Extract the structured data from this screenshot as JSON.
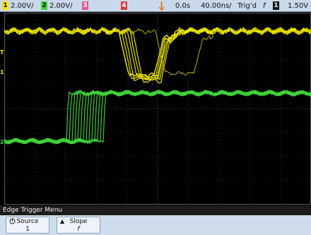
{
  "status_bar": {
    "ch1": {
      "number": "1",
      "scale": "2.00V/",
      "color": "#f5e400"
    },
    "ch2": {
      "number": "2",
      "scale": "2.00V/",
      "color": "#3fd63a"
    },
    "ch3": {
      "number": "3",
      "color": "#e05a8a"
    },
    "ch4": {
      "number": "4",
      "color": "#e03a3a"
    },
    "trigger_marker_icon": "trigger-position-arrow",
    "delay": "0.0s",
    "timebase": "40.00ns/",
    "trigger_status": "Trig'd",
    "slope_symbol": "f",
    "trigger_source": "1",
    "trigger_level": "1.50V"
  },
  "markers": {
    "ch1_ground": "1",
    "ch1_trigger": "T",
    "ch2_ground": "2"
  },
  "menu": {
    "title": "Edge Trigger Menu",
    "softkeys": [
      {
        "label": "Source",
        "value": "1",
        "icon": "rotary-knob-icon"
      },
      {
        "label": "Slope",
        "value": "f",
        "icon": "up-arrow-icon"
      }
    ]
  },
  "colors": {
    "ch1_trace": "#ede800",
    "ch2_trace": "#3fd23a",
    "grid": "#5a5a5a"
  }
}
